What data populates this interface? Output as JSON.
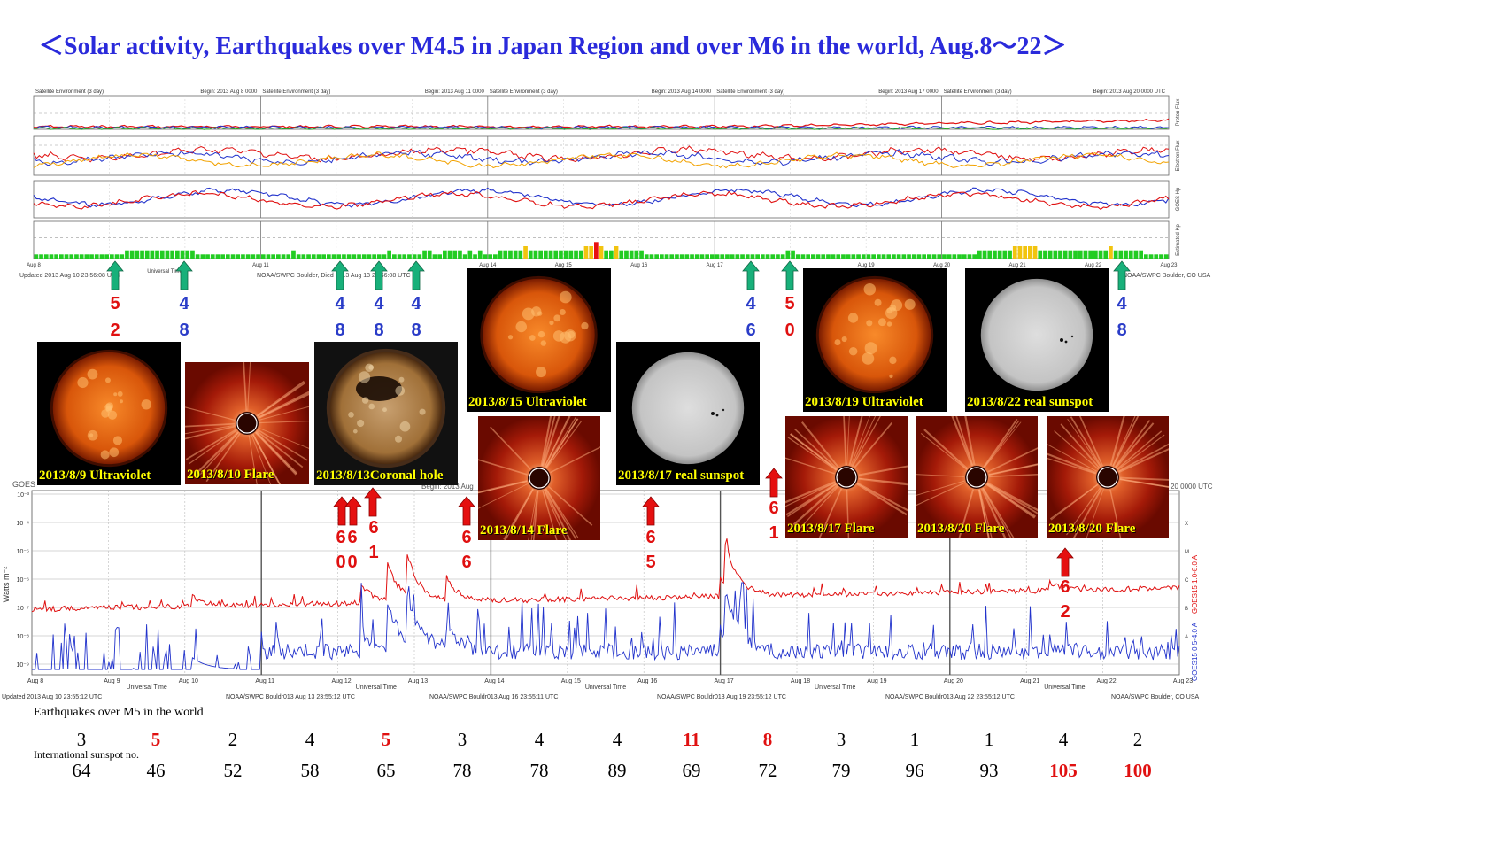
{
  "title": "＜Solar activity, Earthquakes over M4.5 in Japan Region and over M6 in the world, Aug.8～22＞",
  "goes_env": {
    "headers": [
      "Satellite Environment (3 day)",
      "Satellite Environment (3 day)",
      "Satellite Environment (3 day)",
      "Satellite Environment (3 day)",
      "Satellite Environment (3 day)"
    ],
    "begins": [
      "Begin: 2013 Aug 8 0000",
      "Begin: 2013 Aug 11 0000",
      "Begin: 2013 Aug 14 0000",
      "Begin: 2013 Aug 17 0000",
      "Begin: 2013 Aug 20 0000 UTC"
    ],
    "right_labels": [
      "Proton Flux",
      "Electron Flux",
      "GOES Hp",
      "Estimated Kp"
    ],
    "x_ticks": [
      "Aug 8",
      "Aug 11",
      "Aug 14",
      "Aug 15",
      "Aug 16",
      "Aug 17",
      "Aug 19",
      "Aug 20",
      "Aug 21",
      "Aug 22",
      "Aug 23"
    ],
    "universal_time": "Universal Time",
    "footer_left": "Updated 2013 Aug 10 23:56:08 UTC",
    "footer_mid": "NOAA/SWPC Boulder, Died 2013 Aug 13 23:56:08 UTC",
    "footer_right": "NOAA/SWPC Boulder, CO USA",
    "kp_colors": {
      "low": "#22cc22",
      "mid": "#f2c40f",
      "high": "#e81010"
    }
  },
  "chart_data": [
    {
      "type": "bar",
      "title": "Estimated Kp",
      "ylim": [
        0,
        9
      ],
      "values": [
        1,
        1,
        1,
        1,
        1,
        1,
        1,
        1,
        1,
        1,
        1,
        1,
        1,
        1,
        1,
        1,
        1,
        1,
        2,
        2,
        2,
        2,
        2,
        2,
        2,
        2,
        2,
        2,
        2,
        2,
        2,
        2,
        1,
        1,
        1,
        1,
        1,
        1,
        1,
        1,
        1,
        1,
        1,
        1,
        1,
        1,
        1,
        1,
        1,
        1,
        1,
        2,
        1,
        1,
        1,
        1,
        1,
        1,
        1,
        1,
        1,
        1,
        1,
        1,
        1,
        1,
        1,
        1,
        1,
        1,
        2,
        1,
        1,
        1,
        1,
        1,
        1,
        2,
        2,
        1,
        1,
        2,
        2,
        2,
        2,
        1,
        2,
        1,
        2,
        1,
        1,
        1,
        2,
        2,
        2,
        2,
        2,
        3,
        2,
        2,
        2,
        2,
        2,
        2,
        2,
        2,
        2,
        2,
        2,
        3,
        3,
        4,
        3,
        2,
        2,
        3,
        2,
        2,
        2,
        2,
        2,
        1,
        1,
        1,
        1,
        1,
        1,
        1,
        1,
        1,
        1,
        1,
        1,
        1,
        1,
        1,
        1,
        1,
        1,
        1,
        1,
        1,
        1,
        1,
        1,
        1,
        1,
        1,
        1,
        2,
        2,
        1,
        1,
        1,
        1,
        1,
        1,
        1,
        1,
        1,
        1,
        1,
        1,
        1,
        1,
        1,
        1,
        1,
        1,
        1,
        1,
        1,
        1,
        1,
        1,
        1,
        1,
        1,
        1,
        1,
        1,
        1,
        1,
        1,
        1,
        1,
        1,
        2,
        2,
        2,
        2,
        2,
        2,
        2,
        3,
        3,
        3,
        3,
        3,
        2,
        2,
        2,
        2,
        2,
        2,
        2,
        2,
        2,
        2,
        2,
        2,
        2,
        2,
        3,
        2,
        2,
        2,
        2,
        2,
        2,
        1,
        1,
        1,
        1,
        1
      ]
    },
    {
      "type": "line",
      "title": "GOES15 X-ray flux",
      "ylabel": "Watts m⁻²",
      "yscale": "log",
      "right_labels": [
        "X",
        "M",
        "C",
        "B",
        "A"
      ],
      "series_labels": [
        "GOES15 1.0-8.0 A",
        "GOES15 0.5-4.0 A"
      ],
      "x_ticks": [
        "Aug 8",
        "Aug 9",
        "Aug 10",
        "Aug 11",
        "Aug 12",
        "Aug 13",
        "Aug 14",
        "Aug 15",
        "Aug 16",
        "Aug 17",
        "Aug 18",
        "Aug 19",
        "Aug 20",
        "Aug 21",
        "Aug 22",
        "Aug 23"
      ],
      "y_ticks": [
        "10⁻³",
        "10⁻⁴",
        "10⁻⁵",
        "10⁻⁶",
        "10⁻⁷",
        "10⁻⁸",
        "10⁻⁹"
      ],
      "universal_time": "Universal Time",
      "footer": [
        "Updated 2013 Aug 10 23:55:12 UTC",
        "NOAA/SWPC Bouldr013 Aug 13 23:55:12 UTC",
        "NOAA/SWPC Bouldr013 Aug 16 23:55:11 UTC",
        "NOAA/SWPC Bouldr013 Aug 19 23:55:12 UTC",
        "NOAA/SWPC Bouldr013 Aug 22 23:55:12 UTC",
        "NOAA/SWPC Boulder, CO USA"
      ],
      "header_left": "GOES",
      "header_begin": "Begin: 2013 Aug",
      "header_right": "20 0000 UTC"
    }
  ],
  "images": [
    {
      "caption": "2013/8/9 Ultraviolet",
      "kind": "uv"
    },
    {
      "caption": "2013/8/10 Flare",
      "kind": "flare"
    },
    {
      "caption": "2013/8/13Coronal  hole",
      "kind": "corona"
    },
    {
      "caption": "2013/8/15 Ultraviolet",
      "kind": "uv"
    },
    {
      "caption": "2013/8/14 Flare",
      "kind": "flare"
    },
    {
      "caption": "2013/8/17 real sunspot",
      "kind": "white"
    },
    {
      "caption": "2013/8/19 Ultraviolet",
      "kind": "uv"
    },
    {
      "caption": "2013/8/22 real sunspot",
      "kind": "white"
    },
    {
      "caption": "2013/8/17 Flare",
      "kind": "flare"
    },
    {
      "caption": "2013/8/20 Flare",
      "kind": "flare"
    },
    {
      "caption": "2013/8/20 Flare",
      "kind": "flare"
    }
  ],
  "japan_quakes": [
    {
      "top": "5",
      "bottom": "2",
      "color": "red"
    },
    {
      "top": "4",
      "bottom": "8",
      "color": "blue"
    },
    {
      "top": "4",
      "bottom": "8",
      "color": "blue"
    },
    {
      "top": "4",
      "bottom": "8",
      "color": "blue"
    },
    {
      "top": "4",
      "bottom": "8",
      "color": "blue"
    },
    {
      "top": "4",
      "bottom": "6",
      "color": "blue"
    },
    {
      "top": "5",
      "bottom": "0",
      "color": "red"
    },
    {
      "top": "4",
      "bottom": "8",
      "color": "blue"
    }
  ],
  "world_quakes": [
    {
      "top": "6",
      "bottom": "0"
    },
    {
      "top": "6",
      "bottom": "0"
    },
    {
      "top": "6",
      "bottom": "1"
    },
    {
      "top": "6",
      "bottom": "6"
    },
    {
      "top": "6",
      "bottom": "5"
    },
    {
      "top": "6",
      "bottom": "1"
    },
    {
      "top": "6",
      "bottom": "2"
    }
  ],
  "labels": {
    "eq_world": "Earthquakes over M5 in the world",
    "sunspot": "International sunspot no."
  },
  "eq_counts": [
    {
      "v": "3",
      "hl": false
    },
    {
      "v": "5",
      "hl": true
    },
    {
      "v": "2",
      "hl": false
    },
    {
      "v": "4",
      "hl": false
    },
    {
      "v": "5",
      "hl": true
    },
    {
      "v": "3",
      "hl": false
    },
    {
      "v": "4",
      "hl": false
    },
    {
      "v": "4",
      "hl": false
    },
    {
      "v": "11",
      "hl": true
    },
    {
      "v": "8",
      "hl": true
    },
    {
      "v": "3",
      "hl": false
    },
    {
      "v": "1",
      "hl": false
    },
    {
      "v": "1",
      "hl": false
    },
    {
      "v": "4",
      "hl": false
    },
    {
      "v": "2",
      "hl": false
    }
  ],
  "sunspots": [
    {
      "v": "64",
      "hl": false
    },
    {
      "v": "46",
      "hl": false
    },
    {
      "v": "52",
      "hl": false
    },
    {
      "v": "58",
      "hl": false
    },
    {
      "v": "65",
      "hl": false
    },
    {
      "v": "78",
      "hl": false
    },
    {
      "v": "78",
      "hl": false
    },
    {
      "v": "89",
      "hl": false
    },
    {
      "v": "69",
      "hl": false
    },
    {
      "v": "72",
      "hl": false
    },
    {
      "v": "79",
      "hl": false
    },
    {
      "v": "96",
      "hl": false
    },
    {
      "v": "93",
      "hl": false
    },
    {
      "v": "105",
      "hl": true
    },
    {
      "v": "100",
      "hl": true
    }
  ]
}
